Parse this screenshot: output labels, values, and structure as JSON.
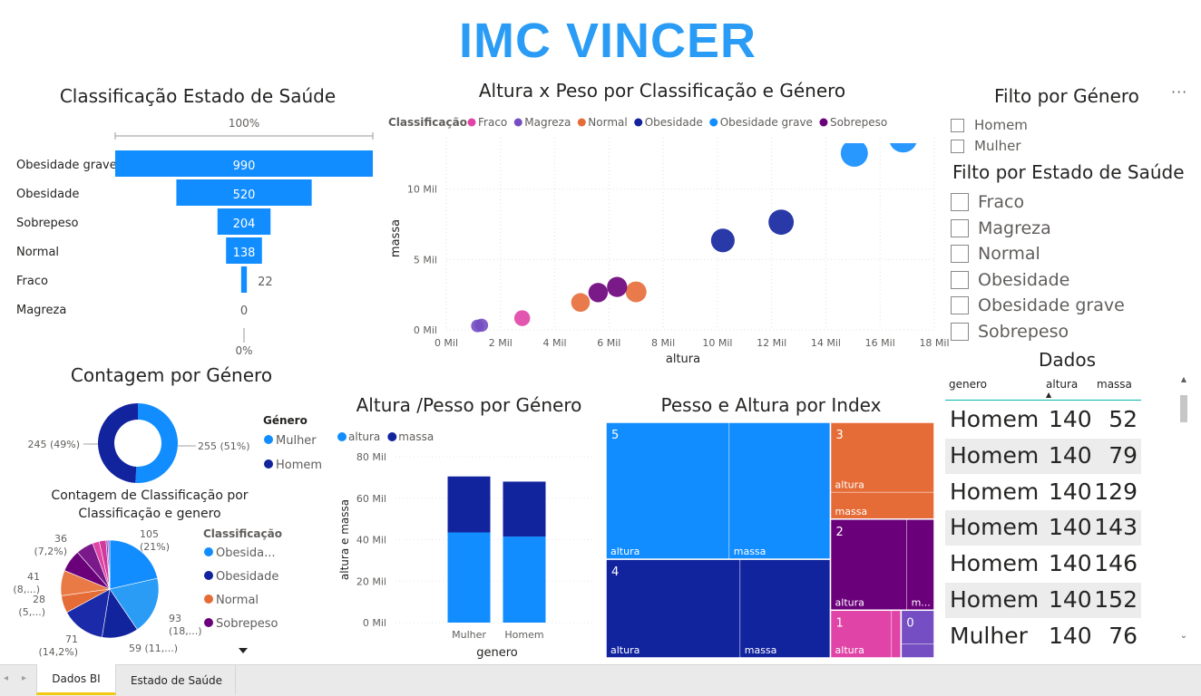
{
  "page_title": "IMC VINCER",
  "more_icon": "ellipsis-icon",
  "funnel": {
    "title": "Classificação Estado de Saúde",
    "top_label": "100%",
    "bottom_label": "0%"
  },
  "scatter_legend_title": "Classificação",
  "bar_legend_title": "",
  "treemap_title": "Pesso e Altura por Index",
  "bar_title": "Altura /Pesso por Género",
  "donut_title": "Contagem por Género",
  "donut_legend_title": "Género",
  "pie_title_line1": "Contagem de Classificação por",
  "pie_title_line2": "Classificação e genero",
  "pie_legend_title": "Classificação",
  "pie_legend_more_icon": "triangle-down-icon",
  "chart_data": [
    {
      "type": "bar",
      "subtype": "funnel",
      "title": "Classificação Estado de Saúde",
      "categories": [
        "Obesidade grave",
        "Obesidade",
        "Sobrepeso",
        "Normal",
        "Fraco",
        "Magreza"
      ],
      "values": [
        990,
        520,
        204,
        138,
        22,
        0
      ],
      "value_labels": [
        "990",
        "520",
        "204",
        "138",
        "22",
        "0"
      ],
      "color": "#118dff"
    },
    {
      "type": "scatter",
      "title": "Altura x Peso por Classificação e Género",
      "xlabel": "altura",
      "ylabel": "massa",
      "xlim": [
        0,
        18000
      ],
      "ylim": [
        0,
        13000
      ],
      "xticks": [
        0,
        2000,
        4000,
        6000,
        8000,
        10000,
        12000,
        14000,
        16000,
        18000
      ],
      "xtick_labels": [
        "0 Mil",
        "2 Mil",
        "4 Mil",
        "6 Mil",
        "8 Mil",
        "10 Mil",
        "12 Mil",
        "14 Mil",
        "16 Mil",
        "18 Mil"
      ],
      "yticks": [
        0,
        5000,
        10000
      ],
      "ytick_labels": [
        "0 Mil",
        "5 Mil",
        "10 Mil"
      ],
      "grid": true,
      "legend_position": "top",
      "series": [
        {
          "name": "Fraco",
          "color": "#e044a7",
          "points": [
            [
              2800,
              830
            ]
          ]
        },
        {
          "name": "Magreza",
          "color": "#744ec2",
          "points": [
            [
              1150,
              280
            ],
            [
              1300,
              330
            ]
          ]
        },
        {
          "name": "Normal",
          "color": "#e66c37",
          "points": [
            [
              4950,
              1950
            ],
            [
              7000,
              2700
            ]
          ]
        },
        {
          "name": "Obesidade",
          "color": "#12239e",
          "points": [
            [
              10200,
              6350
            ],
            [
              12350,
              7650
            ]
          ]
        },
        {
          "name": "Obesidade grave",
          "color": "#118dff",
          "points": [
            [
              15050,
              12550
            ],
            [
              16850,
              13600
            ]
          ]
        },
        {
          "name": "Sobrepeso",
          "color": "#6b007b",
          "points": [
            [
              5600,
              2650
            ],
            [
              6300,
              3050
            ]
          ]
        }
      ]
    },
    {
      "type": "bar",
      "subtype": "stacked",
      "title": "Altura /Pesso por Género",
      "xlabel": "genero",
      "ylabel": "altura e massa",
      "categories": [
        "Mulher",
        "Homem"
      ],
      "ylim": [
        0,
        80000
      ],
      "yticks": [
        0,
        20000,
        40000,
        60000,
        80000
      ],
      "ytick_labels": [
        "0 Mil",
        "20 Mil",
        "40 Mil",
        "60 Mil",
        "80 Mil"
      ],
      "legend_position": "top-left",
      "series": [
        {
          "name": "altura",
          "color": "#118dff",
          "values": [
            43500,
            41500
          ]
        },
        {
          "name": "massa",
          "color": "#12239e",
          "values": [
            27000,
            26500
          ]
        }
      ]
    },
    {
      "type": "pie",
      "subtype": "donut",
      "title": "Contagem por Género",
      "categories": [
        "Mulher",
        "Homem"
      ],
      "values": [
        255,
        245
      ],
      "value_labels": [
        "255 (51%)",
        "245 (49%)"
      ],
      "colors": [
        "#118dff",
        "#12239e"
      ]
    },
    {
      "type": "pie",
      "title": "Contagem de Classificação por Classificação e genero",
      "slices": [
        {
          "class": "Obesidade grave",
          "value": 105,
          "color": "#118dff",
          "label1": "105",
          "label2": "(21%)"
        },
        {
          "class": "Obesidade grave",
          "value": 93,
          "color": "#2a9cf5",
          "label1": "93",
          "label2": "(18,...)"
        },
        {
          "class": "Obesidade",
          "value": 59,
          "color": "#12239e",
          "label1": "59 (11,...)",
          "label2": ""
        },
        {
          "class": "Obesidade",
          "value": 71,
          "color": "#1a2aa8",
          "label1": "71",
          "label2": "(14,2%)"
        },
        {
          "class": "Normal",
          "value": 28,
          "color": "#e66c37",
          "label1": "28",
          "label2": "(5,...)"
        },
        {
          "class": "Normal",
          "value": 41,
          "color": "#ea7a45",
          "label1": "41",
          "label2": "(8,...)"
        },
        {
          "class": "Sobrepeso",
          "value": 36,
          "color": "#6b007b",
          "label1": "36",
          "label2": "(7,2%)"
        },
        {
          "class": "Sobrepeso",
          "value": 28,
          "color": "#7a1a8a",
          "label1": "",
          "label2": ""
        },
        {
          "class": "Fraco",
          "value": 11,
          "color": "#e044a7",
          "label1": "",
          "label2": ""
        },
        {
          "class": "Fraco",
          "value": 11,
          "color": "#d1399a",
          "label1": "",
          "label2": ""
        },
        {
          "class": "Magreza",
          "value": 3,
          "color": "#744ec2",
          "label1": "",
          "label2": ""
        },
        {
          "class": "Magreza",
          "value": 3,
          "color": "#8a63d2",
          "label1": "",
          "label2": ""
        }
      ],
      "legend": [
        {
          "name": "Obesida...",
          "color": "#118dff"
        },
        {
          "name": "Obesidade",
          "color": "#12239e"
        },
        {
          "name": "Normal",
          "color": "#e66c37"
        },
        {
          "name": "Sobrepeso",
          "color": "#6b007b"
        }
      ]
    },
    {
      "type": "treemap",
      "title": "Pesso e Altura por Index",
      "groups": [
        {
          "index": "5",
          "color": "#118dff",
          "items": [
            {
              "name": "altura",
              "value": 25500
            },
            {
              "name": "massa",
              "value": 21000
            }
          ]
        },
        {
          "index": "4",
          "color": "#12239e",
          "items": [
            {
              "name": "altura",
              "value": 20000
            },
            {
              "name": "massa",
              "value": 13500
            }
          ]
        },
        {
          "index": "3",
          "color": "#e66c37",
          "items": [
            {
              "name": "altura",
              "value": 11000
            },
            {
              "name": "massa",
              "value": 4200
            }
          ]
        },
        {
          "index": "2",
          "color": "#6b007b",
          "items": [
            {
              "name": "altura",
              "value": 10500
            },
            {
              "name": "m...",
              "value": 3800
            }
          ]
        },
        {
          "index": "1",
          "color": "#e044a7",
          "items": [
            {
              "name": "altura",
              "value": 4400
            },
            {
              "name": "",
              "value": 700
            }
          ]
        },
        {
          "index": "0",
          "color": "#744ec2",
          "items": [
            {
              "name": "",
              "value": 1700
            },
            {
              "name": "",
              "value": 700
            }
          ]
        }
      ]
    },
    {
      "type": "table",
      "title": "Dados",
      "columns": [
        "genero",
        "altura",
        "massa"
      ],
      "sorted_column": "altura",
      "rows": [
        [
          "Homem",
          "140",
          "52"
        ],
        [
          "Homem",
          "140",
          "79"
        ],
        [
          "Homem",
          "140",
          "129"
        ],
        [
          "Homem",
          "140",
          "143"
        ],
        [
          "Homem",
          "140",
          "146"
        ],
        [
          "Homem",
          "140",
          "152"
        ],
        [
          "Mulher",
          "140",
          "76"
        ]
      ]
    }
  ],
  "slicer_genero": {
    "title": "Filto por Género",
    "options": [
      "Homem",
      "Mulher"
    ]
  },
  "slicer_saude": {
    "title": "Filto por Estado de Saúde",
    "options": [
      "Fraco",
      "Magreza",
      "Normal",
      "Obesidade",
      "Obesidade grave",
      "Sobrepeso"
    ]
  },
  "tabs": [
    "Dados BI",
    "Estado de Saúde"
  ],
  "active_tab": "Dados BI",
  "tab_nav_icons": [
    "chevron-left-icon",
    "chevron-right-icon"
  ]
}
